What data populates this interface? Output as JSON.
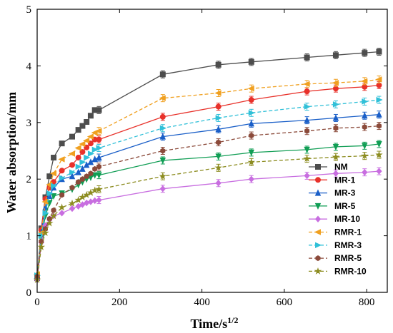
{
  "chart_data": {
    "type": "line",
    "title": "",
    "xlabel": "Time/s",
    "xlabel_sup": "1/2",
    "ylabel": "Water absorption/mm",
    "xlim": [
      0,
      850
    ],
    "ylim": [
      0,
      5
    ],
    "xticks": [
      0,
      200,
      400,
      600,
      800
    ],
    "yticks": [
      0,
      1,
      2,
      3,
      4,
      5
    ],
    "grid": false,
    "legend_position": "bottom-right",
    "x": [
      0,
      10,
      20,
      30,
      40,
      60,
      85,
      100,
      110,
      120,
      130,
      140,
      150,
      305,
      440,
      520,
      655,
      725,
      795,
      830
    ],
    "series": [
      {
        "name": "NM",
        "color": "#4d4d4d",
        "marker": "square",
        "dashed": false,
        "values": [
          0.25,
          1.13,
          1.68,
          2.05,
          2.38,
          2.63,
          2.75,
          2.87,
          2.94,
          3.01,
          3.12,
          3.22,
          3.22,
          3.85,
          4.02,
          4.07,
          4.15,
          4.19,
          4.23,
          4.25
        ]
      },
      {
        "name": "MR-1",
        "color": "#e8312a",
        "marker": "circle",
        "dashed": false,
        "values": [
          0.3,
          1.1,
          1.65,
          1.85,
          1.95,
          2.15,
          2.25,
          2.38,
          2.48,
          2.56,
          2.63,
          2.7,
          2.7,
          3.1,
          3.28,
          3.4,
          3.55,
          3.6,
          3.63,
          3.66
        ]
      },
      {
        "name": "MR-3",
        "color": "#1a5fc8",
        "marker": "triangle-up",
        "dashed": false,
        "values": [
          0.28,
          1.05,
          1.5,
          1.7,
          1.85,
          2.0,
          2.05,
          2.12,
          2.18,
          2.25,
          2.3,
          2.35,
          2.38,
          2.75,
          2.88,
          2.98,
          3.04,
          3.08,
          3.12,
          3.14
        ]
      },
      {
        "name": "MR-5",
        "color": "#119e55",
        "marker": "triangle-down",
        "dashed": false,
        "values": [
          0.25,
          0.95,
          1.35,
          1.58,
          1.7,
          1.75,
          1.82,
          1.9,
          1.95,
          2.0,
          2.03,
          2.07,
          2.07,
          2.33,
          2.4,
          2.47,
          2.52,
          2.57,
          2.59,
          2.62
        ]
      },
      {
        "name": "MR-10",
        "color": "#c86ee0",
        "marker": "diamond",
        "dashed": false,
        "values": [
          0.22,
          0.88,
          1.18,
          1.28,
          1.35,
          1.4,
          1.48,
          1.52,
          1.55,
          1.58,
          1.6,
          1.62,
          1.63,
          1.83,
          1.93,
          2.0,
          2.06,
          2.1,
          2.12,
          2.14
        ]
      },
      {
        "name": "RMR-1",
        "color": "#f0a020",
        "marker": "triangle-left",
        "dashed": true,
        "values": [
          0.32,
          1.05,
          1.6,
          1.9,
          2.1,
          2.35,
          2.45,
          2.55,
          2.62,
          2.68,
          2.75,
          2.82,
          2.85,
          3.43,
          3.52,
          3.6,
          3.68,
          3.7,
          3.73,
          3.76
        ]
      },
      {
        "name": "RMR-3",
        "color": "#30c0d8",
        "marker": "triangle-right",
        "dashed": true,
        "values": [
          0.3,
          1.0,
          1.4,
          1.75,
          1.88,
          2.02,
          2.12,
          2.22,
          2.3,
          2.38,
          2.45,
          2.52,
          2.55,
          2.9,
          3.08,
          3.17,
          3.28,
          3.32,
          3.37,
          3.4
        ]
      },
      {
        "name": "RMR-5",
        "color": "#8b4a3a",
        "marker": "hexagon",
        "dashed": true,
        "values": [
          0.28,
          0.9,
          1.12,
          1.3,
          1.45,
          1.72,
          1.85,
          1.95,
          2.0,
          2.05,
          2.1,
          2.18,
          2.22,
          2.5,
          2.65,
          2.77,
          2.85,
          2.9,
          2.92,
          2.94
        ]
      },
      {
        "name": "RMR-10",
        "color": "#8c8c20",
        "marker": "star",
        "dashed": true,
        "values": [
          0.22,
          0.8,
          1.05,
          1.22,
          1.35,
          1.5,
          1.57,
          1.63,
          1.68,
          1.72,
          1.76,
          1.8,
          1.82,
          2.05,
          2.2,
          2.3,
          2.36,
          2.39,
          2.41,
          2.43
        ]
      }
    ]
  }
}
